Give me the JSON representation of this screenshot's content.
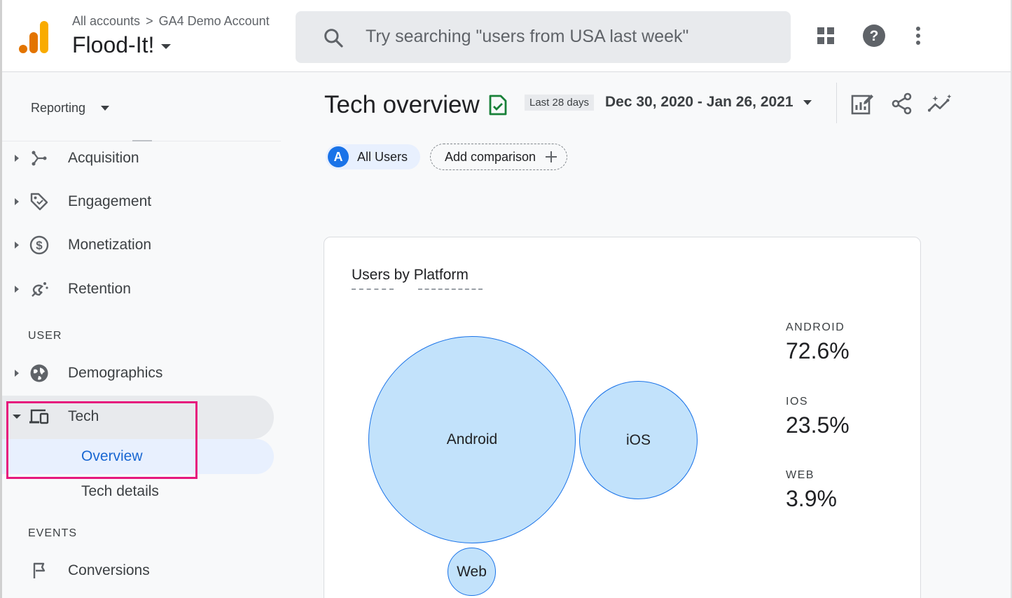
{
  "header": {
    "breadcrumb": [
      "All accounts",
      "GA4 Demo Account"
    ],
    "breadcrumb_sep": ">",
    "property": "Flood-It!",
    "search_placeholder": "Try searching \"users from USA last week\""
  },
  "sidebar": {
    "reporting_label": "Reporting",
    "items": [
      {
        "label": "Acquisition"
      },
      {
        "label": "Engagement"
      },
      {
        "label": "Monetization"
      },
      {
        "label": "Retention"
      }
    ],
    "user_section": "USER",
    "user_items": [
      {
        "label": "Demographics"
      },
      {
        "label": "Tech"
      }
    ],
    "tech_subitems": [
      {
        "label": "Overview"
      },
      {
        "label": "Tech details"
      }
    ],
    "events_section": "EVENTS",
    "events_items": [
      {
        "label": "Conversions"
      }
    ]
  },
  "main": {
    "title": "Tech overview",
    "date_chip": "Last 28 days",
    "date_range": "Dec 30, 2020 - Jan 26, 2021",
    "comparison": {
      "badge": "A",
      "all_users": "All Users",
      "add_comparison": "Add comparison"
    },
    "card": {
      "title_part1": "Users by",
      "title_part2": "Platform",
      "bubbles": [
        {
          "label": "Android",
          "value": 72.6
        },
        {
          "label": "iOS",
          "value": 23.5
        },
        {
          "label": "Web",
          "value": 3.9
        }
      ],
      "stats": [
        {
          "key": "ANDROID",
          "value": "72.6%"
        },
        {
          "key": "IOS",
          "value": "23.5%"
        },
        {
          "key": "WEB",
          "value": "3.9%"
        }
      ]
    }
  },
  "colors": {
    "accent": "#1a73e8",
    "bubble_fill": "#c2e2fb",
    "highlight": "#e6197d",
    "logo_orange": "#f9ab00",
    "logo_dark_orange": "#e37400"
  }
}
